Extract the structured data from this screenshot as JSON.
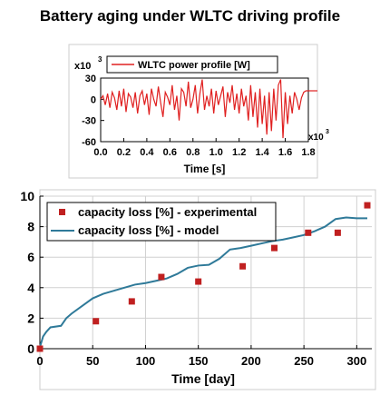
{
  "page_title": "Battery aging under WLTC driving profile",
  "chart_data": [
    {
      "type": "line",
      "name": "power",
      "title": "",
      "xlabel": "Time [s]",
      "ylabel": "",
      "x_multiplier": "x10",
      "x_multiplier_exp": "3",
      "y_multiplier": "x10",
      "y_multiplier_exp": "3",
      "xlim": [
        0.0,
        1.8
      ],
      "ylim": [
        -60,
        30
      ],
      "x_ticks": [
        "0.0",
        "0.2",
        "0.4",
        "0.6",
        "0.8",
        "1.0",
        "1.2",
        "1.4",
        "1.6",
        "1.8"
      ],
      "y_ticks": [
        "30",
        "0",
        "-30",
        "-60"
      ],
      "grid": false,
      "legend_position": "top-center",
      "series": [
        {
          "name": "WLTC power profile [W]",
          "color": "#e02020",
          "x": [
            0.0,
            0.02,
            0.04,
            0.06,
            0.08,
            0.1,
            0.12,
            0.14,
            0.16,
            0.18,
            0.2,
            0.22,
            0.24,
            0.26,
            0.28,
            0.3,
            0.32,
            0.34,
            0.36,
            0.38,
            0.4,
            0.42,
            0.44,
            0.46,
            0.48,
            0.5,
            0.52,
            0.54,
            0.56,
            0.58,
            0.6,
            0.62,
            0.64,
            0.66,
            0.68,
            0.7,
            0.72,
            0.74,
            0.76,
            0.78,
            0.8,
            0.82,
            0.84,
            0.86,
            0.88,
            0.9,
            0.92,
            0.94,
            0.96,
            0.98,
            1.0,
            1.02,
            1.04,
            1.06,
            1.08,
            1.1,
            1.12,
            1.14,
            1.16,
            1.18,
            1.2,
            1.22,
            1.24,
            1.26,
            1.28,
            1.3,
            1.32,
            1.34,
            1.36,
            1.38,
            1.4,
            1.42,
            1.44,
            1.46,
            1.48,
            1.5,
            1.52,
            1.54,
            1.56,
            1.58,
            1.6,
            1.62,
            1.64,
            1.66,
            1.68,
            1.7,
            1.72,
            1.74,
            1.76,
            1.78,
            1.8
          ],
          "y": [
            0,
            5,
            -8,
            8,
            -12,
            10,
            2,
            -15,
            12,
            -10,
            15,
            -18,
            8,
            3,
            -12,
            10,
            -20,
            5,
            12,
            -8,
            8,
            -22,
            15,
            0,
            -10,
            18,
            -5,
            -25,
            10,
            3,
            -8,
            20,
            -15,
            5,
            -30,
            15,
            10,
            -10,
            25,
            -12,
            0,
            20,
            -20,
            8,
            28,
            -15,
            5,
            -10,
            15,
            -20,
            12,
            -8,
            5,
            18,
            -25,
            10,
            -5,
            20,
            -15,
            8,
            -20,
            15,
            -10,
            5,
            -30,
            20,
            -25,
            10,
            -40,
            15,
            -35,
            5,
            -50,
            10,
            -45,
            15,
            -30,
            20,
            28,
            -55,
            10,
            -35,
            5,
            -20,
            10,
            0,
            -15,
            2,
            10,
            12,
            12
          ]
        }
      ]
    },
    {
      "type": "line",
      "name": "capacity",
      "title": "",
      "xlabel": "Time [day]",
      "ylabel": "",
      "xlim": [
        0,
        310
      ],
      "ylim": [
        0,
        10
      ],
      "x_ticks": [
        0,
        50,
        100,
        150,
        200,
        250,
        300
      ],
      "y_ticks": [
        0,
        2,
        4,
        6,
        8,
        10
      ],
      "grid": true,
      "legend_position": "top-left",
      "series": [
        {
          "name": "capacity loss [%] - experimental",
          "kind": "scatter",
          "color": "#c02020",
          "x": [
            0,
            53,
            87,
            115,
            150,
            192,
            222,
            254,
            282,
            310
          ],
          "y": [
            0,
            1.8,
            3.1,
            4.7,
            4.4,
            5.4,
            6.6,
            7.6,
            7.6,
            9.4
          ]
        },
        {
          "name": "capacity loss [%] - model",
          "kind": "line",
          "color": "#2f7a99",
          "x": [
            0,
            3,
            6,
            10,
            20,
            25,
            30,
            40,
            50,
            60,
            70,
            80,
            90,
            100,
            110,
            120,
            130,
            140,
            150,
            160,
            170,
            180,
            190,
            200,
            210,
            220,
            230,
            240,
            250,
            260,
            270,
            280,
            290,
            300,
            310
          ],
          "y": [
            0.1,
            0.8,
            1.1,
            1.4,
            1.5,
            2.0,
            2.3,
            2.8,
            3.3,
            3.6,
            3.8,
            4.0,
            4.2,
            4.3,
            4.45,
            4.6,
            4.9,
            5.3,
            5.45,
            5.5,
            5.9,
            6.5,
            6.6,
            6.75,
            6.9,
            7.05,
            7.15,
            7.3,
            7.45,
            7.7,
            8.0,
            8.5,
            8.6,
            8.55,
            8.55
          ]
        }
      ]
    }
  ]
}
